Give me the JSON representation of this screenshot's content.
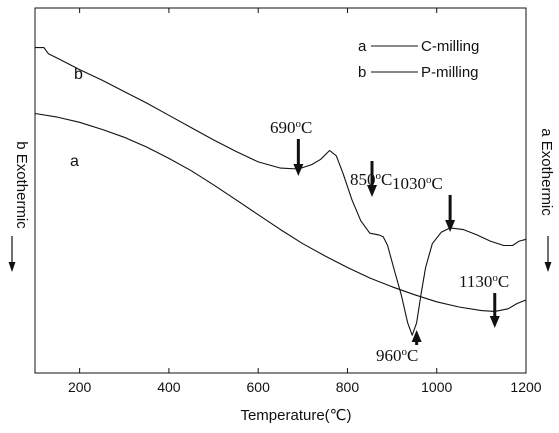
{
  "chart_data": {
    "type": "line",
    "xlabel": "Temperature(℃)",
    "ylabel_left": "b Exothermic",
    "ylabel_right": "a Exothermic",
    "xlim": [
      100,
      1200
    ],
    "xticks": [
      200,
      400,
      600,
      800,
      1000,
      1200
    ],
    "legend": [
      {
        "key": "a",
        "name": "C-milling"
      },
      {
        "key": "b",
        "name": "P-milling"
      }
    ],
    "legend_position": "top-right",
    "series": [
      {
        "name": "C-milling",
        "label": "a",
        "x": [
          100,
          150,
          200,
          250,
          300,
          350,
          400,
          450,
          500,
          550,
          600,
          650,
          700,
          750,
          800,
          850,
          900,
          950,
          1000,
          1050,
          1100,
          1130,
          1160,
          1180,
          1200
        ],
        "y": [
          2.0,
          1.96,
          1.9,
          1.82,
          1.73,
          1.62,
          1.49,
          1.35,
          1.19,
          1.02,
          0.85,
          0.68,
          0.52,
          0.38,
          0.25,
          0.13,
          0.03,
          -0.06,
          -0.14,
          -0.2,
          -0.24,
          -0.25,
          -0.22,
          -0.16,
          -0.12
        ]
      },
      {
        "name": "P-milling",
        "label": "b",
        "x": [
          100,
          120,
          130,
          150,
          200,
          250,
          300,
          350,
          400,
          450,
          500,
          550,
          600,
          650,
          690,
          720,
          740,
          760,
          775,
          790,
          810,
          830,
          850,
          870,
          880,
          890,
          905,
          920,
          935,
          945,
          955,
          965,
          975,
          990,
          1010,
          1030,
          1060,
          1090,
          1120,
          1150,
          1170,
          1185,
          1200
        ],
        "y": [
          2.75,
          2.75,
          2.68,
          2.63,
          2.5,
          2.38,
          2.25,
          2.12,
          1.98,
          1.84,
          1.7,
          1.57,
          1.45,
          1.38,
          1.37,
          1.42,
          1.48,
          1.58,
          1.52,
          1.32,
          1.02,
          0.78,
          0.64,
          0.62,
          0.6,
          0.5,
          0.22,
          -0.05,
          -0.38,
          -0.52,
          -0.38,
          -0.05,
          0.25,
          0.52,
          0.65,
          0.7,
          0.68,
          0.62,
          0.55,
          0.5,
          0.5,
          0.55,
          0.57
        ]
      }
    ],
    "annotations": [
      {
        "label": "690",
        "unit": "oC",
        "x": 690,
        "direction": "down"
      },
      {
        "label": "850",
        "unit": "oC",
        "x": 855,
        "direction": "down"
      },
      {
        "label": "1030",
        "unit": "oC",
        "x": 1030,
        "direction": "down"
      },
      {
        "label": "1130",
        "unit": "oC",
        "x": 1130,
        "direction": "down"
      },
      {
        "label": "960",
        "unit": "oC",
        "x": 955,
        "direction": "up"
      }
    ]
  }
}
